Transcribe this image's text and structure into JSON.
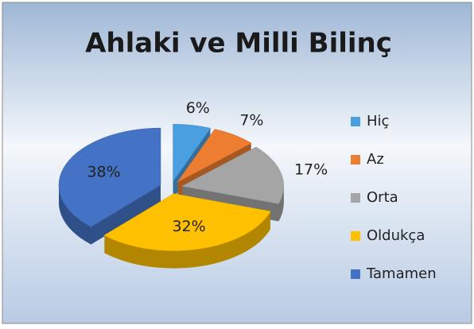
{
  "chart_data": {
    "type": "pie3d",
    "title": "Ahlaki ve Milli Bilinç",
    "categories": [
      "Hiç",
      "Az",
      "Orta",
      "Oldukça",
      "Tamamen"
    ],
    "values": [
      6,
      7,
      17,
      32,
      38
    ],
    "value_labels": [
      "6%",
      "7%",
      "17%",
      "32%",
      "38%"
    ],
    "colors": [
      "#4a9fe0",
      "#ed7d31",
      "#a5a5a5",
      "#ffc000",
      "#4472c4"
    ],
    "legend": "right"
  }
}
